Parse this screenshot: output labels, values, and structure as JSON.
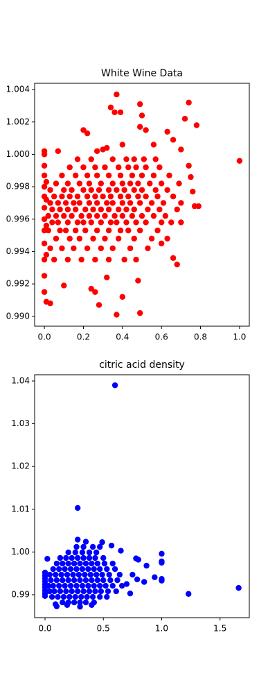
{
  "chart_data": [
    {
      "type": "scatter",
      "title": "White Wine Data",
      "color": "#ff0000",
      "x": [
        1.0,
        0.74,
        0.78,
        0.37,
        0.34,
        0.36,
        0.39,
        0.49,
        0.5,
        0.49,
        0.52,
        0.72,
        0.63,
        0.2,
        0.22,
        0.4,
        0.0,
        0.0,
        0.07,
        0.27,
        0.3,
        0.32,
        0.49,
        0.37,
        0.28,
        0.4,
        0.01,
        0.03,
        0.24,
        0.26,
        0.48,
        0.68,
        0.66,
        0.32,
        0.1,
        0.0,
        0.6,
        0.77,
        0.79,
        0.6,
        0.7,
        0.75,
        0.76,
        0.74,
        0.7,
        0.66,
        0.56,
        0,
        0,
        0,
        0,
        0,
        0,
        0,
        0,
        0,
        0,
        0.01,
        0.01,
        0.01,
        0.01,
        0.05,
        0.12,
        0.19,
        0.26,
        0.33,
        0.41,
        0.47,
        0.03,
        0.09,
        0.15,
        0.22,
        0.29,
        0.35,
        0.44,
        0.53,
        0.06,
        0.13,
        0.18,
        0.25,
        0.31,
        0.38,
        0.46,
        0.55,
        0.63,
        0.02,
        0.08,
        0.11,
        0.16,
        0.21,
        0.27,
        0.33,
        0.39,
        0.43,
        0.49,
        0.58,
        0.04,
        0.07,
        0.12,
        0.17,
        0.2,
        0.24,
        0.29,
        0.34,
        0.37,
        0.42,
        0.47,
        0.52,
        0.65,
        0.02,
        0.06,
        0.1,
        0.14,
        0.19,
        0.23,
        0.27,
        0.31,
        0.36,
        0.4,
        0.45,
        0.5,
        0.56,
        0.62,
        0.04,
        0.08,
        0.12,
        0.16,
        0.21,
        0.25,
        0.29,
        0.33,
        0.38,
        0.42,
        0.46,
        0.53,
        0.59,
        0.68,
        0.03,
        0.07,
        0.11,
        0.15,
        0.18,
        0.23,
        0.27,
        0.32,
        0.35,
        0.4,
        0.44,
        0.49,
        0.55,
        0.61,
        0.7,
        0.05,
        0.09,
        0.13,
        0.17,
        0.22,
        0.26,
        0.3,
        0.34,
        0.39,
        0.43,
        0.48,
        0.52,
        0.58,
        0.66,
        0.03,
        0.1,
        0.14,
        0.2,
        0.24,
        0.28,
        0.33,
        0.37,
        0.41,
        0.46,
        0.5,
        0.57,
        0.63,
        0.06,
        0.12,
        0.18,
        0.23,
        0.29,
        0.35,
        0.4,
        0.44,
        0.48,
        0.54,
        0.6,
        0.69,
        0.09,
        0.16,
        0.22,
        0.27,
        0.33,
        0.39,
        0.45,
        0.5,
        0.56,
        0.64,
        0.13,
        0.2,
        0.26,
        0.31,
        0.38,
        0.43,
        0.47,
        0.52,
        0.59,
        0.17,
        0.24,
        0.35,
        0.42,
        0.46,
        0.51,
        0.57
      ],
      "values": [
        0.9996,
        1.0032,
        1.0018,
        1.0037,
        1.0029,
        1.0026,
        1.0026,
        1.0031,
        1.0024,
        1.0017,
        1.0015,
        1.0022,
        1.0014,
        1.0015,
        1.0013,
        1.0006,
        1.0002,
        1.0,
        1.0002,
        1.0002,
        1.0003,
        1.0004,
        0.9902,
        0.9901,
        0.9907,
        0.9912,
        0.9909,
        0.9908,
        0.9917,
        0.9915,
        0.9922,
        0.9932,
        0.9936,
        0.9924,
        0.9919,
        0.9915,
        0.9945,
        0.9968,
        0.9968,
        0.9958,
        0.9958,
        0.9986,
        0.9977,
        0.9993,
        1.0003,
        1.0009,
        1.0006,
        0.9925,
        0.9935,
        0.9945,
        0.9953,
        0.996,
        0.9967,
        0.9974,
        0.998,
        0.9987,
        0.9993,
        0.9938,
        0.9956,
        0.9972,
        0.9983,
        0.9935,
        0.9935,
        0.9935,
        0.9935,
        0.9935,
        0.9935,
        0.9935,
        0.9942,
        0.9942,
        0.9942,
        0.9942,
        0.9942,
        0.9942,
        0.9942,
        0.9942,
        0.9948,
        0.9948,
        0.9948,
        0.9948,
        0.9948,
        0.9948,
        0.9948,
        0.9948,
        0.9948,
        0.9953,
        0.9953,
        0.9953,
        0.9953,
        0.9953,
        0.9953,
        0.9953,
        0.9953,
        0.9953,
        0.9953,
        0.9953,
        0.9958,
        0.9958,
        0.9958,
        0.9958,
        0.9958,
        0.9958,
        0.9958,
        0.9958,
        0.9958,
        0.9958,
        0.9958,
        0.9958,
        0.9958,
        0.9962,
        0.9962,
        0.9962,
        0.9962,
        0.9962,
        0.9962,
        0.9962,
        0.9962,
        0.9962,
        0.9962,
        0.9962,
        0.9962,
        0.9962,
        0.9962,
        0.9966,
        0.9966,
        0.9966,
        0.9966,
        0.9966,
        0.9966,
        0.9966,
        0.9966,
        0.9966,
        0.9966,
        0.9966,
        0.9966,
        0.9966,
        0.9966,
        0.997,
        0.997,
        0.997,
        0.997,
        0.997,
        0.997,
        0.997,
        0.997,
        0.997,
        0.997,
        0.997,
        0.997,
        0.997,
        0.997,
        0.997,
        0.9974,
        0.9974,
        0.9974,
        0.9974,
        0.9974,
        0.9974,
        0.9974,
        0.9974,
        0.9974,
        0.9974,
        0.9974,
        0.9974,
        0.9974,
        0.9974,
        0.9978,
        0.9978,
        0.9978,
        0.9978,
        0.9978,
        0.9978,
        0.9978,
        0.9978,
        0.9978,
        0.9978,
        0.9978,
        0.9978,
        0.9978,
        0.9982,
        0.9982,
        0.9982,
        0.9982,
        0.9982,
        0.9982,
        0.9982,
        0.9982,
        0.9982,
        0.9982,
        0.9982,
        0.9982,
        0.9987,
        0.9987,
        0.9987,
        0.9987,
        0.9987,
        0.9987,
        0.9987,
        0.9987,
        0.9987,
        0.9987,
        0.9992,
        0.9992,
        0.9992,
        0.9992,
        0.9992,
        0.9992,
        0.9992,
        0.9992,
        0.9992,
        0.9997,
        0.9997,
        0.9997,
        0.9997,
        0.9997,
        0.9997,
        0.9997
      ],
      "xlim": [
        -0.05,
        1.05
      ],
      "xticks": [
        {
          "value": 0,
          "label": "0.0"
        },
        0.2,
        0.4,
        0.6,
        0.8,
        {
          "value": 1,
          "label": "1.0"
        }
      ],
      "ylim": [
        0.98939,
        1.00439
      ],
      "yticks": [
        {
          "value": 0.99,
          "label": "0.990"
        },
        {
          "value": 0.992,
          "label": "0.992"
        },
        {
          "value": 0.994,
          "label": "0.994"
        },
        {
          "value": 0.996,
          "label": "0.996"
        },
        {
          "value": 0.998,
          "label": "0.998"
        },
        {
          "value": 1.0,
          "label": "1.000"
        },
        {
          "value": 1.002,
          "label": "1.002"
        },
        {
          "value": 1.004,
          "label": "1.004"
        }
      ]
    },
    {
      "type": "scatter",
      "title": "citric acid density",
      "color": "#0000ff",
      "x": [
        0.6,
        0.28,
        1.66,
        1.23,
        1.0,
        1.0,
        1.0,
        1.0,
        1.0,
        0.94,
        0.87,
        0.85,
        0.79,
        0.73,
        0.8,
        0.78,
        0.28,
        0.35,
        0.49,
        0.57,
        0.65,
        0.02,
        0.0,
        0.0,
        0.0,
        0.0,
        0.0,
        0.0,
        0.0,
        0.0,
        0.0,
        0.09,
        0.1,
        0.3,
        0.4,
        0.19,
        0.7,
        0.75,
        0.15,
        0.2,
        0.25,
        0.3,
        0.35,
        0.42,
        0.06,
        0.11,
        0.16,
        0.21,
        0.26,
        0.31,
        0.36,
        0.41,
        0.47,
        0.53,
        0.04,
        0.08,
        0.13,
        0.18,
        0.23,
        0.28,
        0.33,
        0.38,
        0.43,
        0.48,
        0.54,
        0.61,
        0.03,
        0.07,
        0.12,
        0.17,
        0.22,
        0.27,
        0.32,
        0.37,
        0.42,
        0.47,
        0.52,
        0.58,
        0.66,
        0.05,
        0.1,
        0.15,
        0.2,
        0.25,
        0.3,
        0.35,
        0.4,
        0.45,
        0.5,
        0.56,
        0.62,
        0.04,
        0.09,
        0.14,
        0.19,
        0.24,
        0.29,
        0.34,
        0.39,
        0.44,
        0.49,
        0.55,
        0.64,
        0.07,
        0.12,
        0.17,
        0.22,
        0.27,
        0.32,
        0.37,
        0.42,
        0.47,
        0.53,
        0.6,
        0.1,
        0.15,
        0.2,
        0.25,
        0.3,
        0.35,
        0.4,
        0.45,
        0.51,
        0.58,
        0.13,
        0.18,
        0.23,
        0.28,
        0.33,
        0.38,
        0.43,
        0.5,
        0.2,
        0.26,
        0.32,
        0.38,
        0.44,
        0.27,
        0.33,
        0.41,
        0.47
      ],
      "values": [
        1.039,
        1.0103,
        0.9916,
        0.9902,
        0.9996,
        0.9978,
        0.9975,
        0.9937,
        0.9933,
        0.9941,
        0.9968,
        0.993,
        0.9936,
        0.9903,
        0.9982,
        0.9985,
        1.0029,
        1.0024,
        1.0023,
        1.0015,
        1.0003,
        0.9984,
        0.9952,
        0.9945,
        0.9938,
        0.9931,
        0.9924,
        0.9917,
        0.991,
        0.9903,
        0.9897,
        0.9878,
        0.9873,
        0.9872,
        0.9876,
        0.9876,
        0.9925,
        0.9947,
        0.9882,
        0.9882,
        0.9882,
        0.9882,
        0.9882,
        0.9882,
        0.9895,
        0.9895,
        0.9895,
        0.9895,
        0.9895,
        0.9895,
        0.9895,
        0.9895,
        0.9895,
        0.9895,
        0.9908,
        0.9908,
        0.9908,
        0.9908,
        0.9908,
        0.9908,
        0.9908,
        0.9908,
        0.9908,
        0.9908,
        0.9908,
        0.9908,
        0.9921,
        0.9921,
        0.9921,
        0.9921,
        0.9921,
        0.9921,
        0.9921,
        0.9921,
        0.9921,
        0.9921,
        0.9921,
        0.9921,
        0.9921,
        0.9934,
        0.9934,
        0.9934,
        0.9934,
        0.9934,
        0.9934,
        0.9934,
        0.9934,
        0.9934,
        0.9934,
        0.9934,
        0.9934,
        0.9947,
        0.9947,
        0.9947,
        0.9947,
        0.9947,
        0.9947,
        0.9947,
        0.9947,
        0.9947,
        0.9947,
        0.9947,
        0.9947,
        0.996,
        0.996,
        0.996,
        0.996,
        0.996,
        0.996,
        0.996,
        0.996,
        0.996,
        0.996,
        0.996,
        0.9973,
        0.9973,
        0.9973,
        0.9973,
        0.9973,
        0.9973,
        0.9973,
        0.9973,
        0.9973,
        0.9973,
        0.9986,
        0.9986,
        0.9986,
        0.9986,
        0.9986,
        0.9986,
        0.9986,
        0.9986,
        0.9999,
        0.9999,
        0.9999,
        0.9999,
        0.9999,
        1.0012,
        1.0012,
        1.0012,
        1.0012
      ],
      "xlim": [
        -0.089,
        1.751
      ],
      "xticks": [
        {
          "value": 0,
          "label": "0.0"
        },
        0.5,
        {
          "value": 1,
          "label": "1.0"
        },
        1.5
      ],
      "ylim": [
        0.98464,
        1.04146
      ],
      "yticks": [
        0.99,
        {
          "value": 1.0,
          "label": "1.00"
        },
        1.01,
        1.02,
        1.03,
        1.04
      ]
    }
  ]
}
